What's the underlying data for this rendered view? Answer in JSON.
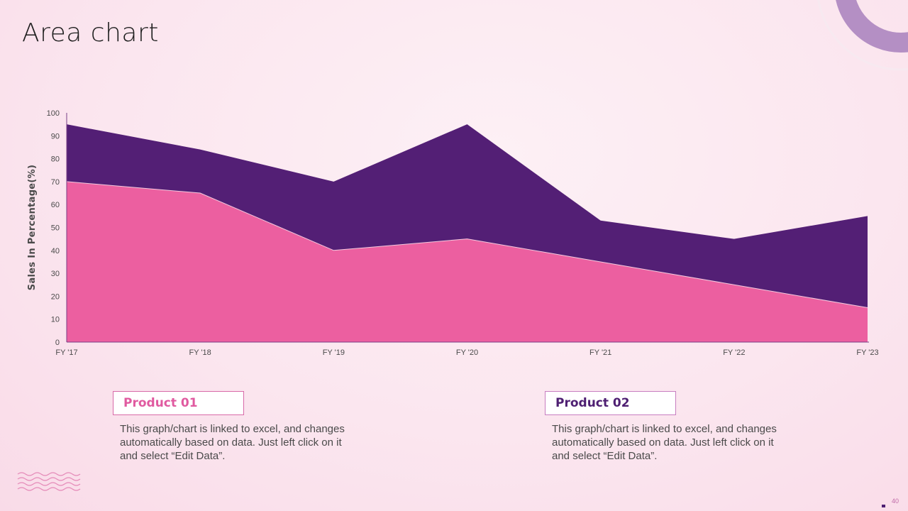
{
  "slide": {
    "title": "Area chart",
    "page_number": "40"
  },
  "products": [
    {
      "name": "Product 01",
      "description": "This graph/chart is linked to excel, and changes automatically based on data. Just left click on it and select “Edit Data”."
    },
    {
      "name": "Product 02",
      "description": "This graph/chart is linked to excel, and changes automatically based on data. Just left click on it and select “Edit Data”."
    }
  ],
  "colors": {
    "product_01": "#ec5fa0",
    "product_02": "#531f75",
    "accent_ring": "#b48fc4"
  },
  "chart_data": {
    "type": "area",
    "stacked": true,
    "categories": [
      "FY '17",
      "FY '18",
      "FY '19",
      "FY '20",
      "FY '21",
      "FY '22",
      "FY '23"
    ],
    "series": [
      {
        "name": "Product 01",
        "values": [
          70,
          65,
          40,
          45,
          35,
          25,
          15
        ]
      },
      {
        "name": "Product 02",
        "values": [
          25,
          19,
          30,
          50,
          18,
          20,
          40
        ]
      }
    ],
    "ylabel": "Sales In Percentage(%)",
    "xlabel": "",
    "ylim": [
      0,
      100
    ],
    "yticks": [
      0,
      10,
      20,
      30,
      40,
      50,
      60,
      70,
      80,
      90,
      100
    ],
    "grid": false,
    "legend": "none"
  }
}
